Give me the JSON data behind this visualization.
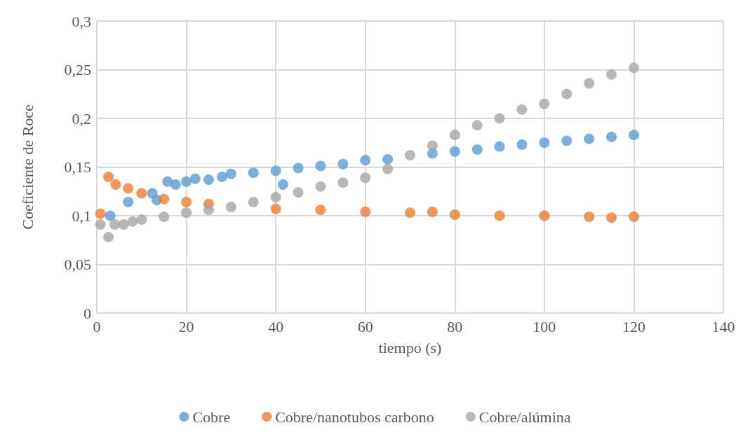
{
  "chart_data": {
    "type": "scatter",
    "xlabel": "tiempo (s)",
    "ylabel": "Coeficiente de Roce",
    "xlim": [
      0,
      140
    ],
    "xticks": [
      0,
      20,
      40,
      60,
      80,
      100,
      120,
      140
    ],
    "ylim": [
      0,
      0.3
    ],
    "yticks": [
      0,
      {
        "value": 0.05,
        "label": "0,05"
      },
      {
        "value": 0.1,
        "label": "0,1"
      },
      {
        "value": 0.15,
        "label": "0,15"
      },
      {
        "value": 0.2,
        "label": "0,2"
      },
      {
        "value": 0.25,
        "label": "0,25"
      },
      {
        "value": 0.3,
        "label": "0,3"
      }
    ],
    "grid": true,
    "legend": "bottom",
    "marker": "circle",
    "series": [
      {
        "name": "Cobre",
        "color": "#5b9bd5",
        "x": [
          3,
          7,
          12.4,
          13.4,
          15.8,
          17.6,
          20,
          22,
          25,
          28,
          30,
          35,
          40,
          41.6,
          45,
          50,
          55,
          60,
          65,
          75,
          80,
          85,
          90,
          95,
          100,
          105,
          110,
          115,
          120
        ],
        "values": [
          0.1,
          0.114,
          0.123,
          0.116,
          0.135,
          0.132,
          0.135,
          0.138,
          0.137,
          0.14,
          0.143,
          0.144,
          0.146,
          0.132,
          0.149,
          0.151,
          0.153,
          0.157,
          0.158,
          0.164,
          0.166,
          0.168,
          0.171,
          0.173,
          0.175,
          0.177,
          0.179,
          0.181,
          0.183
        ]
      },
      {
        "name": "Cobre/nanotubos carbono",
        "color": "#ed7d31",
        "x": [
          0.8,
          2.6,
          4.2,
          7,
          10,
          15,
          20,
          25,
          40,
          50,
          60,
          70,
          75,
          80,
          90,
          100,
          110,
          115,
          120
        ],
        "values": [
          0.102,
          0.14,
          0.132,
          0.128,
          0.123,
          0.117,
          0.114,
          0.112,
          0.107,
          0.106,
          0.104,
          0.103,
          0.104,
          0.101,
          0.1,
          0.1,
          0.099,
          0.098,
          0.099
        ]
      },
      {
        "name": "Cobre/alúmina",
        "color": "#a5a5a5",
        "x": [
          0.8,
          2.6,
          4,
          6,
          8,
          10,
          15,
          20,
          25,
          30,
          35,
          40,
          45,
          50,
          55,
          60,
          65,
          70,
          75,
          80,
          85,
          90,
          95,
          100,
          105,
          110,
          115,
          120
        ],
        "values": [
          0.091,
          0.078,
          0.091,
          0.091,
          0.094,
          0.096,
          0.099,
          0.103,
          0.106,
          0.109,
          0.114,
          0.119,
          0.124,
          0.13,
          0.134,
          0.139,
          0.148,
          0.162,
          0.172,
          0.183,
          0.193,
          0.2,
          0.209,
          0.215,
          0.225,
          0.236,
          0.245,
          0.252
        ]
      }
    ]
  }
}
